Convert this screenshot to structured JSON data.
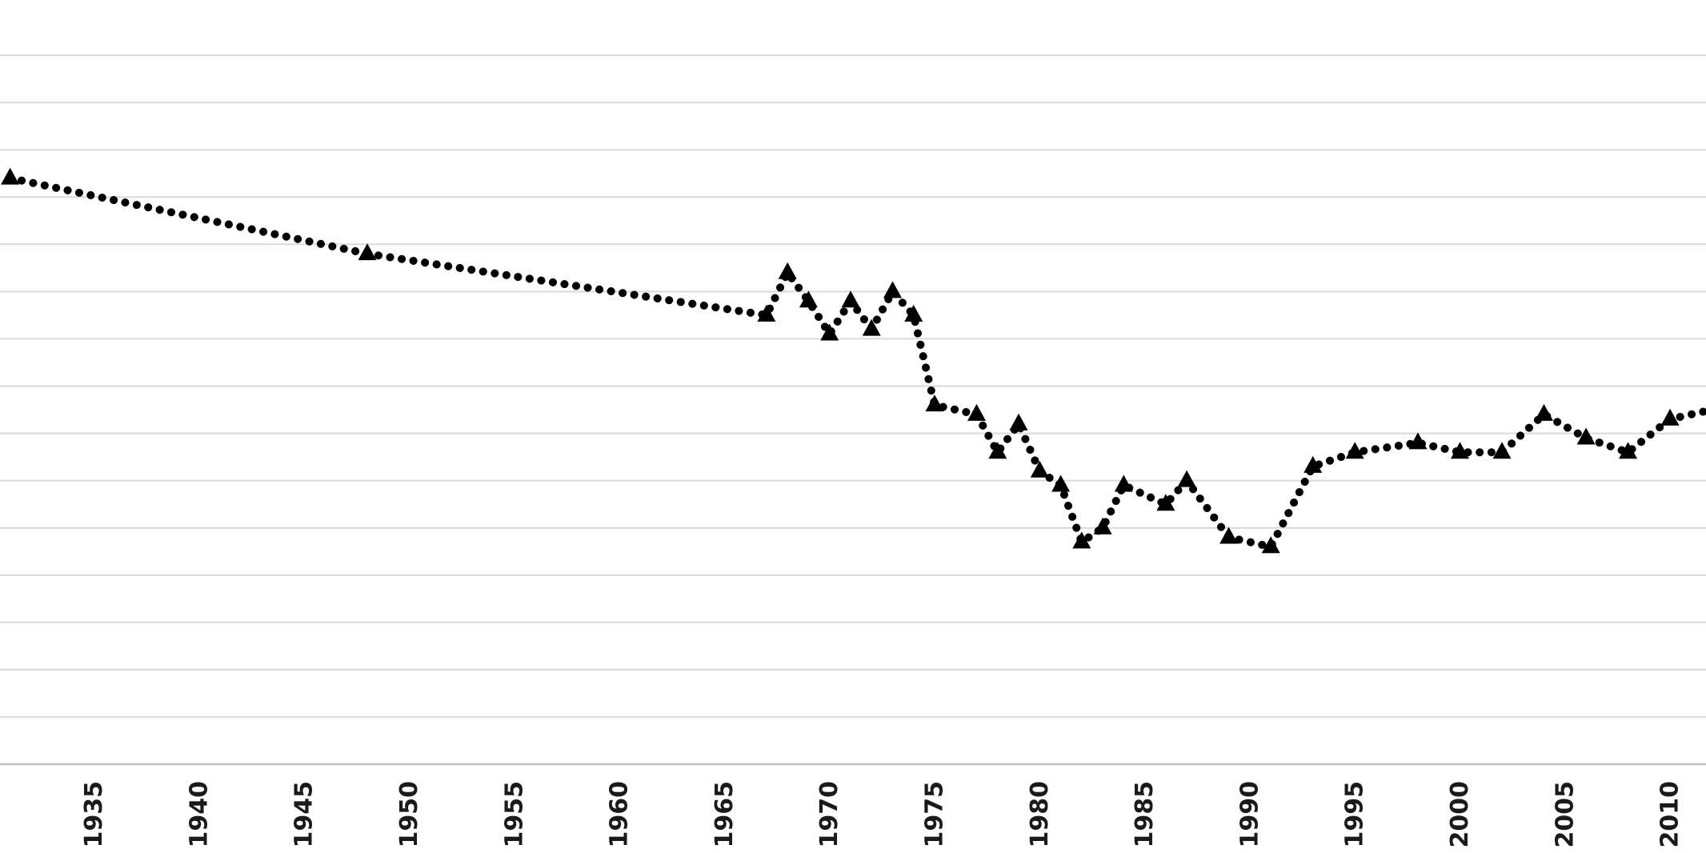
{
  "chart_data": {
    "type": "line",
    "title": "",
    "xlabel": "",
    "ylabel": "",
    "x_tick_labels": [
      "1935",
      "1940",
      "1945",
      "1950",
      "1955",
      "1960",
      "1965",
      "1970",
      "1975",
      "1980",
      "1985",
      "1990",
      "1995",
      "2000",
      "2005",
      "2010"
    ],
    "x_tick_start_year": 1935,
    "x_tick_step_years": 5,
    "x_visible_range_years": [
      1930.5,
      2011.7
    ],
    "y_axis_labels_visible": false,
    "y_unit": "unlabeled-gridline-units (bottom axis = 0, one unit per gridline)",
    "ylim": [
      0,
      16
    ],
    "gridlines_visible_count": 15,
    "grid": "horizontal",
    "legend": false,
    "series": [
      {
        "name": "dotted-triangle-series",
        "line_style": "dotted",
        "marker": "filled-triangle-up",
        "points": [
          {
            "year": 1931,
            "value": 12.4
          },
          {
            "year": 1948,
            "value": 10.8
          },
          {
            "year": 1967,
            "value": 9.5
          },
          {
            "year": 1968,
            "value": 10.4
          },
          {
            "year": 1969,
            "value": 9.8
          },
          {
            "year": 1970,
            "value": 9.1
          },
          {
            "year": 1971,
            "value": 9.8
          },
          {
            "year": 1972,
            "value": 9.2
          },
          {
            "year": 1973,
            "value": 10.0
          },
          {
            "year": 1974,
            "value": 9.5
          },
          {
            "year": 1975,
            "value": 7.6
          },
          {
            "year": 1977,
            "value": 7.4
          },
          {
            "year": 1978,
            "value": 6.6
          },
          {
            "year": 1979,
            "value": 7.2
          },
          {
            "year": 1980,
            "value": 6.2
          },
          {
            "year": 1981,
            "value": 5.9
          },
          {
            "year": 1982,
            "value": 4.7
          },
          {
            "year": 1983,
            "value": 5.0
          },
          {
            "year": 1984,
            "value": 5.9
          },
          {
            "year": 1986,
            "value": 5.5
          },
          {
            "year": 1987,
            "value": 6.0
          },
          {
            "year": 1989,
            "value": 4.8
          },
          {
            "year": 1991,
            "value": 4.6
          },
          {
            "year": 1993,
            "value": 6.3
          },
          {
            "year": 1995,
            "value": 6.6
          },
          {
            "year": 1998,
            "value": 6.8
          },
          {
            "year": 2000,
            "value": 6.6
          },
          {
            "year": 2002,
            "value": 6.6
          },
          {
            "year": 2004,
            "value": 7.4
          },
          {
            "year": 2006,
            "value": 6.9
          },
          {
            "year": 2008,
            "value": 6.6
          },
          {
            "year": 2010,
            "value": 7.3
          }
        ],
        "continues_offframe_to": {
          "year": 2012,
          "value": 7.5
        }
      }
    ],
    "colors": {
      "background": "#ffffff",
      "gridline": "#d9d9d9",
      "axis_line": "#c0c0c0",
      "tick_label": "#1a1a1a",
      "series": "#000000"
    }
  }
}
